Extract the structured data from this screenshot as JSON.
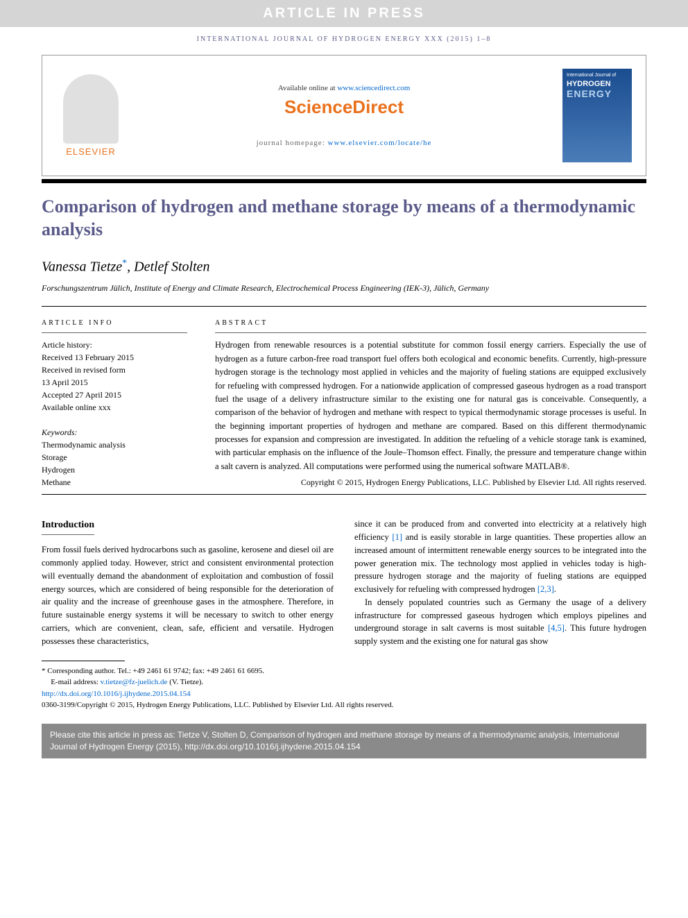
{
  "banner": "ARTICLE IN PRESS",
  "journal_header": "INTERNATIONAL JOURNAL OF HYDROGEN ENERGY XXX (2015) 1–8",
  "header": {
    "elsevier": "ELSEVIER",
    "available": "Available online at ",
    "available_link": "www.sciencedirect.com",
    "sd_logo": "ScienceDirect",
    "homepage_label": "journal homepage: ",
    "homepage_link": "www.elsevier.com/locate/he",
    "cover_small": "International Journal of",
    "cover_h": "HYDROGEN",
    "cover_e": "ENERGY"
  },
  "title": "Comparison of hydrogen and methane storage by means of a thermodynamic analysis",
  "authors": {
    "a1": "Vanessa Tietze",
    "a2": "Detlef Stolten",
    "star": "*"
  },
  "affiliation": "Forschungszentrum Jülich, Institute of Energy and Climate Research, Electrochemical Process Engineering (IEK-3), Jülich, Germany",
  "info": {
    "label": "ARTICLE INFO",
    "history_label": "Article history:",
    "received": "Received 13 February 2015",
    "revised1": "Received in revised form",
    "revised2": "13 April 2015",
    "accepted": "Accepted 27 April 2015",
    "online": "Available online xxx",
    "kw_label": "Keywords:",
    "k1": "Thermodynamic analysis",
    "k2": "Storage",
    "k3": "Hydrogen",
    "k4": "Methane"
  },
  "abstract": {
    "label": "ABSTRACT",
    "text": "Hydrogen from renewable resources is a potential substitute for common fossil energy carriers. Especially the use of hydrogen as a future carbon-free road transport fuel offers both ecological and economic benefits. Currently, high-pressure hydrogen storage is the technology most applied in vehicles and the majority of fueling stations are equipped exclusively for refueling with compressed hydrogen. For a nationwide application of compressed gaseous hydrogen as a road transport fuel the usage of a delivery infrastructure similar to the existing one for natural gas is conceivable. Consequently, a comparison of the behavior of hydrogen and methane with respect to typical thermodynamic storage processes is useful. In the beginning important properties of hydrogen and methane are compared. Based on this different thermodynamic processes for expansion and compression are investigated. In addition the refueling of a vehicle storage tank is examined, with particular emphasis on the influence of the Joule–Thomson effect. Finally, the pressure and temperature change within a salt cavern is analyzed. All computations were performed using the numerical software MATLAB®.",
    "copyright": "Copyright © 2015, Hydrogen Energy Publications, LLC. Published by Elsevier Ltd. All rights reserved."
  },
  "body": {
    "heading": "Introduction",
    "col1_p1": "From fossil fuels derived hydrocarbons such as gasoline, kerosene and diesel oil are commonly applied today. However, strict and consistent environmental protection will eventually demand the abandonment of exploitation and combustion of fossil energy sources, which are considered of being responsible for the deterioration of air quality and the increase of greenhouse gases in the atmosphere. Therefore, in future sustainable energy systems it will be necessary to switch to other energy carriers, which are convenient, clean, safe, efficient and versatile. Hydrogen possesses these characteristics,",
    "col2_p1a": "since it can be produced from and converted into electricity at a relatively high efficiency ",
    "col2_ref1": "[1]",
    "col2_p1b": " and is easily storable in large quantities. These properties allow an increased amount of intermittent renewable energy sources to be integrated into the power generation mix. The technology most applied in vehicles today is high-pressure hydrogen storage and the majority of fueling stations are equipped exclusively for refueling with compressed hydrogen ",
    "col2_ref2": "[2,3]",
    "col2_p1c": ".",
    "col2_p2a": "In densely populated countries such as Germany the usage of a delivery infrastructure for compressed gaseous hydrogen which employs pipelines and underground storage in salt caverns is most suitable ",
    "col2_ref3": "[4,5]",
    "col2_p2b": ". This future hydrogen supply system and the existing one for natural gas show"
  },
  "footer": {
    "corr_label": "* Corresponding author. ",
    "corr_detail": "Tel.: +49 2461 61 9742; fax: +49 2461 61 6695.",
    "email_label": "E-mail address: ",
    "email": "v.tietze@fz-juelich.de",
    "email_tail": " (V. Tietze).",
    "doi": "http://dx.doi.org/10.1016/j.ijhydene.2015.04.154",
    "issn_line": "0360-3199/Copyright © 2015, Hydrogen Energy Publications, LLC. Published by Elsevier Ltd. All rights reserved."
  },
  "citebox": "Please cite this article in press as: Tietze V, Stolten D, Comparison of hydrogen and methane storage by means of a thermodynamic analysis, International Journal of Hydrogen Energy (2015), http://dx.doi.org/10.1016/j.ijhydene.2015.04.154"
}
